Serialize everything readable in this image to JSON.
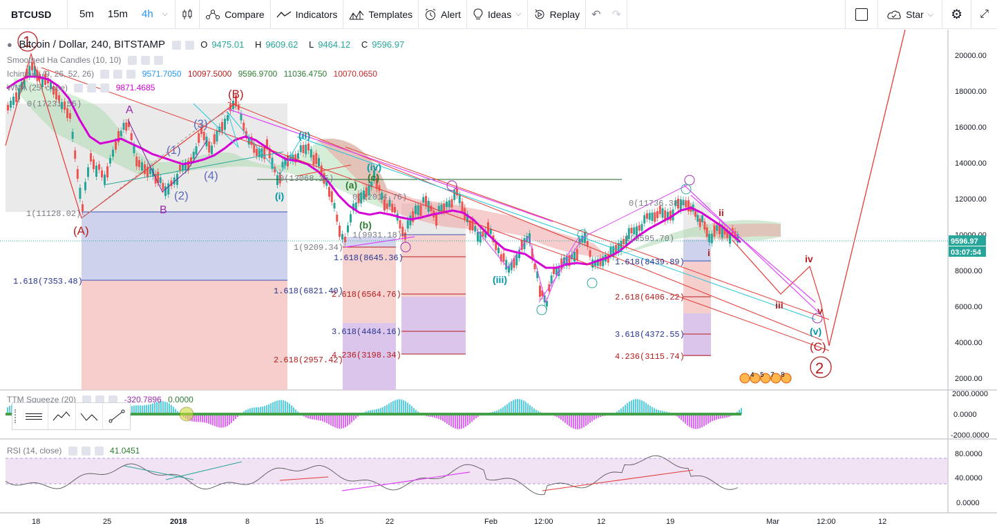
{
  "toolbar": {
    "symbol": "BTCUSD",
    "timeframes": [
      "5m",
      "15m",
      "4h"
    ],
    "active_timeframe": "4h",
    "compare": "Compare",
    "indicators": "Indicators",
    "templates": "Templates",
    "alert": "Alert",
    "ideas": "Ideas",
    "replay": "Replay",
    "star": "Star"
  },
  "legend": {
    "title": "Bitcoin / Dollar, 240, BITSTAMP",
    "o_label": "O",
    "o": "9475.01",
    "h_label": "H",
    "h": "9609.62",
    "l_label": "L",
    "l": "9464.12",
    "c_label": "C",
    "c": "9596.97",
    "ha_name": "Smoothed Ha Candles (10, 10)",
    "ichimoku_name": "Ichimoku (9, 26, 52, 26)",
    "ichimoku_values": [
      "9571.7050",
      "10097.5000",
      "9596.9700",
      "11036.4750",
      "10070.0650"
    ],
    "wma_name": "WMA (25, close)",
    "wma_value": "9871.4685",
    "ttm_name": "TTM Squeeze (20)",
    "ttm_values": [
      "-320.7896",
      "0.0000"
    ],
    "rsi_name": "RSI (14, close)",
    "rsi_value": "41.0451"
  },
  "price_axis": {
    "ticks": [
      "20000.00",
      "18000.00",
      "16000.00",
      "14000.00",
      "12000.00",
      "10000.00",
      "8000.00",
      "6000.00",
      "4000.00",
      "2000.00"
    ],
    "current_price": "9596.97",
    "countdown": "03:07:54"
  },
  "ttm_axis": [
    "2000.0000",
    "0.0000",
    "-2000.0000"
  ],
  "rsi_axis": [
    "80.0000",
    "40.0000",
    "0.0000"
  ],
  "time_axis": [
    "18",
    "25",
    "2018",
    "8",
    "15",
    "22",
    "Feb",
    "12:00",
    "12",
    "19",
    "Mar",
    "12:00",
    "12"
  ],
  "fib_labels": [
    "0(17231.55)",
    "1(11128.02)",
    "1.618(7353.48)",
    "2.618(2957.42)",
    "0(13068.25)",
    "1(9209.34)",
    "1.618(6821.40)",
    "0(12014.76)",
    "1(9931.18)",
    "1.618(8645.36)",
    "2.618(6564.76)",
    "3.618(4484.16)",
    "4.236(3198.34)",
    "0(11736.38)",
    "1(9595.70)",
    "1.618(8439.89)",
    "2.618(6406.22)",
    "3.618(4372.55)",
    "4.236(3115.74)"
  ],
  "wave_labels": {
    "big_1": "1",
    "big_2": "2",
    "A_paren": "(A)",
    "B_paren": "(B)",
    "C_paren": "(C)",
    "A": "A",
    "B": "B",
    "two_paren": "(2)",
    "three_paren": "(3)",
    "four_paren": "(4)",
    "one_paren": "(1)",
    "i": "(i)",
    "ii": "(ii)",
    "iii": "(iii)",
    "iv": "(iv)",
    "v": "(v)",
    "a": "(a)",
    "b": "(b)",
    "c": "(c)",
    "roman_i": "i",
    "roman_ii": "ii",
    "roman_iii": "iii",
    "roman_iv": "iv",
    "roman_v": "v"
  },
  "event_badges": [
    "4",
    "5",
    "7",
    "8"
  ],
  "colors": {
    "accent": "#2196f3",
    "green": "#26a69a",
    "red": "#ef5350",
    "dark_red": "#b71c1c",
    "magenta": "#e040fb",
    "wma": "#d500d5",
    "cyan": "#00bcd4",
    "purple": "#9c27b0"
  }
}
